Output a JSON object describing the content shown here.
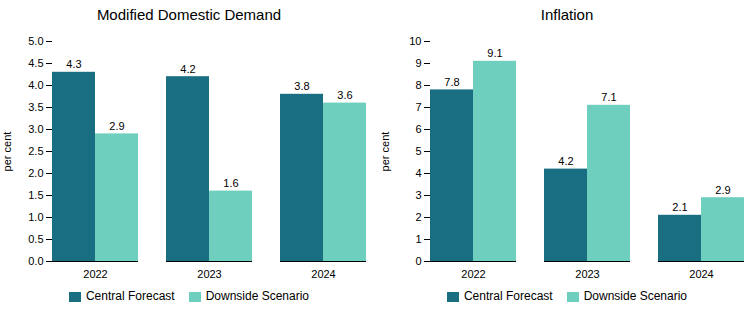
{
  "chart_data": [
    {
      "type": "bar",
      "title": "Modified Domestic Demand",
      "ylabel": "per cent",
      "categories": [
        "2022",
        "2023",
        "2024"
      ],
      "series": [
        {
          "name": "Central Forecast",
          "color": "#1a6e82",
          "values": [
            4.3,
            4.2,
            3.8
          ]
        },
        {
          "name": "Downside Scenario",
          "color": "#6ecfbe",
          "values": [
            2.9,
            1.6,
            3.6
          ]
        }
      ],
      "ylim": [
        0,
        5.0
      ],
      "yticks": [
        {
          "value": 0,
          "label": "0.0"
        },
        0.5,
        {
          "value": 1,
          "label": "1.0"
        },
        1.5,
        {
          "value": 2,
          "label": "2.0"
        },
        2.5,
        {
          "value": 3,
          "label": "3.0"
        },
        3.5,
        {
          "value": 4,
          "label": "4.0"
        },
        4.5,
        {
          "value": 5,
          "label": "5.0"
        }
      ],
      "data_labels": true,
      "legend": "bottom",
      "grid": false
    },
    {
      "type": "bar",
      "title": "Inflation",
      "ylabel": "per cent",
      "categories": [
        "2022",
        "2023",
        "2024"
      ],
      "series": [
        {
          "name": "Central Forecast",
          "color": "#1a6e82",
          "values": [
            7.8,
            4.2,
            2.1
          ]
        },
        {
          "name": "Downside Scenario",
          "color": "#6ecfbe",
          "values": [
            9.1,
            7.1,
            2.9
          ]
        }
      ],
      "ylim": [
        0,
        10
      ],
      "yticks": [
        0,
        1,
        2,
        3,
        4,
        5,
        6,
        7,
        8,
        9,
        10
      ],
      "data_labels": true,
      "legend": "bottom",
      "grid": false
    }
  ]
}
